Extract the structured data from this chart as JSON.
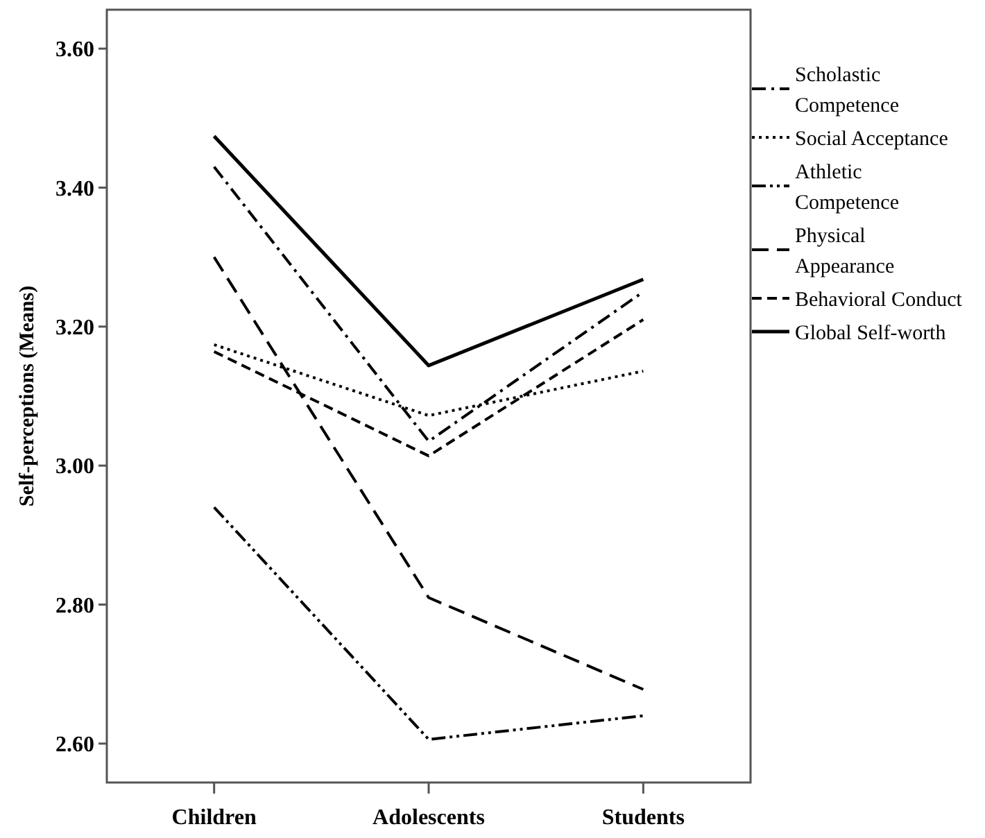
{
  "chart_data": {
    "type": "line",
    "ylabel": "Self-perceptions (Means)",
    "categories": [
      "Children",
      "Adolescents",
      "Students"
    ],
    "ylim": [
      2.544,
      3.656
    ],
    "yticks": [
      {
        "value": 2.6,
        "label": "2.60"
      },
      {
        "value": 2.8,
        "label": "2.80"
      },
      {
        "value": 3.0,
        "label": "3.00"
      },
      {
        "value": 3.2,
        "label": "3.20"
      },
      {
        "value": 3.4,
        "label": "3.40"
      },
      {
        "value": 3.6,
        "label": "3.60"
      }
    ],
    "legend": "right",
    "grid": false,
    "series": [
      {
        "name": "Scholastic Competence",
        "color": "#000000",
        "line_style": "dashdot",
        "values": [
          3.43,
          3.035,
          3.25
        ]
      },
      {
        "name": "Social Acceptance",
        "color": "#000000",
        "line_style": "dotted",
        "values": [
          3.174,
          3.072,
          3.136
        ]
      },
      {
        "name": "Athletic Competence",
        "color": "#000000",
        "line_style": "dashdotdot",
        "values": [
          2.94,
          2.606,
          2.64
        ]
      },
      {
        "name": "Physical Appearance",
        "color": "#000000",
        "line_style": "longdash",
        "values": [
          3.3,
          2.81,
          2.678
        ]
      },
      {
        "name": "Behavioral Conduct",
        "color": "#000000",
        "line_style": "dashed",
        "values": [
          3.164,
          3.014,
          3.21
        ]
      },
      {
        "name": "Global Self-worth",
        "color": "#000000",
        "line_style": "solid",
        "values": [
          3.474,
          3.144,
          3.268
        ]
      }
    ]
  }
}
